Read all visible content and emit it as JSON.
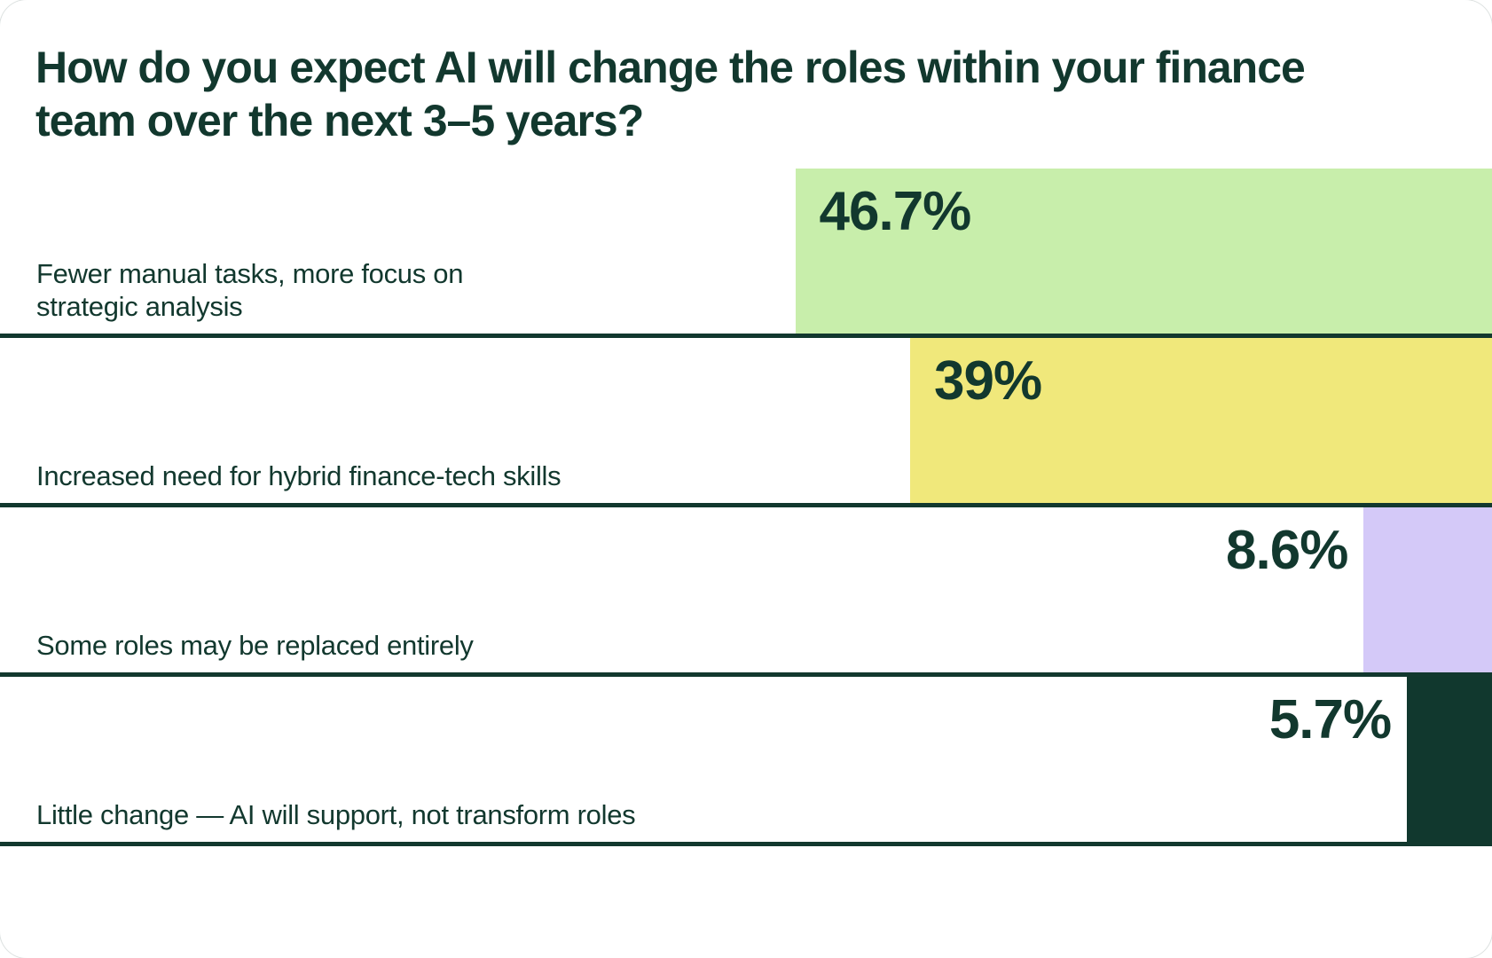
{
  "page": {
    "background": "#ffffff",
    "card_outline": "rgba(17,56,46,0.15)"
  },
  "chart": {
    "title": "How do you expect AI will change the roles within your finance team over the next 3–5 years?",
    "title_lines": [
      "How do you expect AI will change the roles within your finance",
      "team over the next 3–5 years?"
    ]
  },
  "chart_data": {
    "type": "bar",
    "orientation": "horizontal",
    "title": "How do you expect AI will change the roles within your finance team over the next 3–5 years?",
    "categories": [
      "Fewer manual tasks, more focus on strategic analysis",
      "Increased need for hybrid finance-tech skills",
      "Some roles may be replaced entirely",
      "Little change — AI will support, not transform roles"
    ],
    "categories_wrapped": [
      [
        "Fewer manual tasks, more focus on",
        "strategic analysis"
      ],
      [
        "Increased need for hybrid finance-tech skills"
      ],
      [
        "Some roles may be replaced entirely"
      ],
      [
        "Little change — AI will support, not transform roles"
      ]
    ],
    "values": [
      46.7,
      39,
      8.6,
      5.7
    ],
    "value_labels": [
      "46.7%",
      "39%",
      "8.6%",
      "5.7%"
    ],
    "value_label_position": [
      "inside",
      "inside",
      "outside",
      "outside"
    ],
    "bar_colors": [
      "#c8eeab",
      "#f0e87b",
      "#d4c9f8",
      "#11382e"
    ],
    "bar_alignment": "right",
    "xlim": [
      0,
      100
    ],
    "grid": false,
    "legend": false,
    "text_color": "#12382e",
    "divider_color": "#12382e"
  }
}
